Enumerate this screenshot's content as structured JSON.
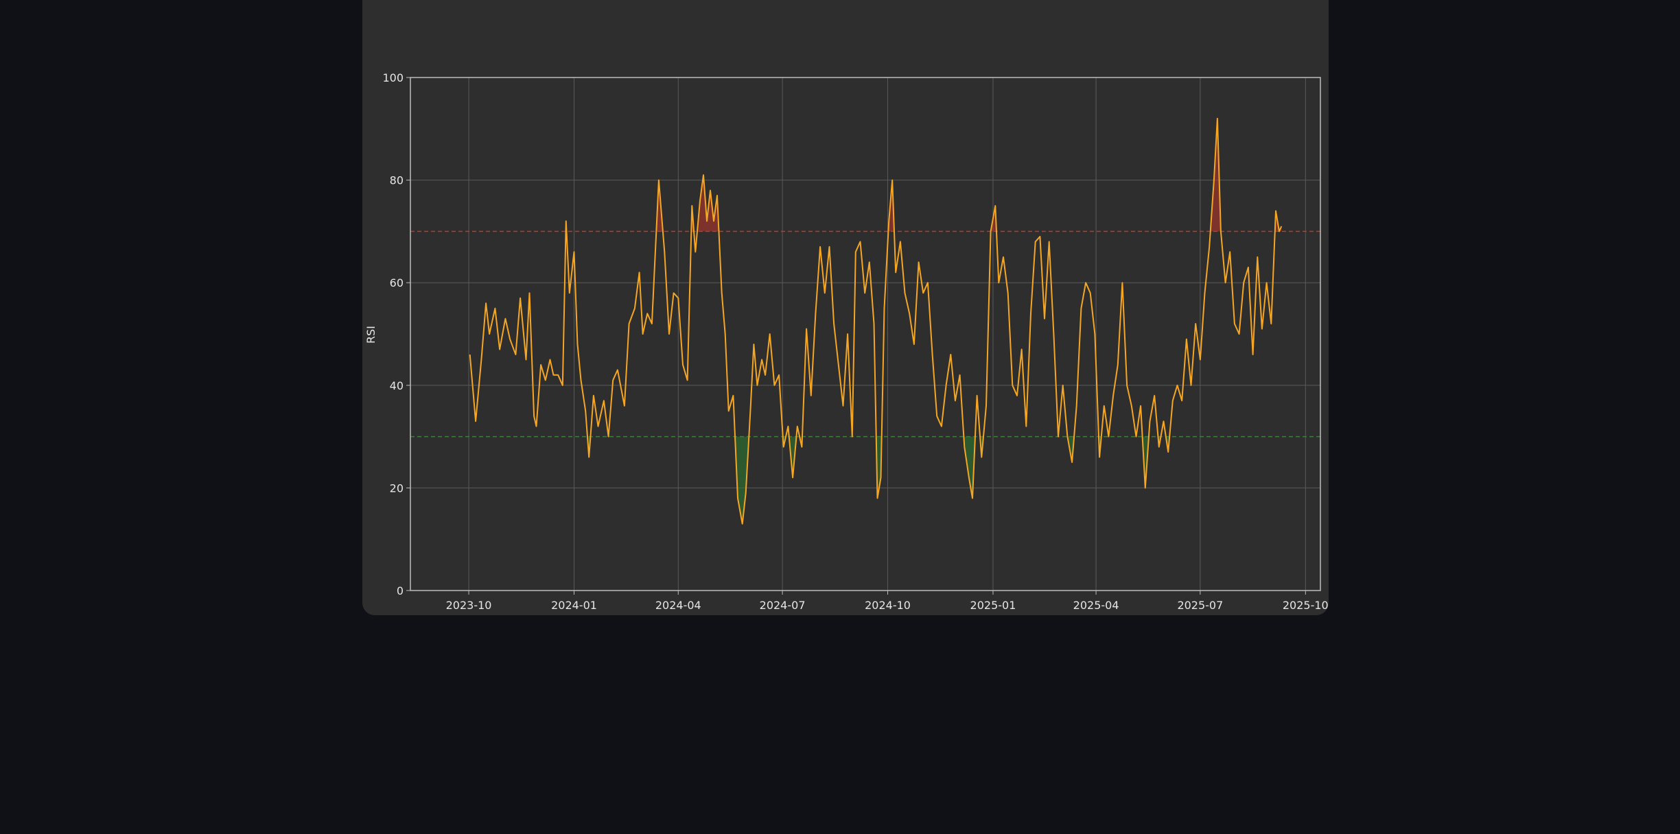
{
  "chart_data": {
    "type": "line",
    "title": "",
    "xlabel": "",
    "ylabel": "RSI",
    "ylim": [
      0,
      100
    ],
    "xlim": [
      "2023-08-11",
      "2025-10-14"
    ],
    "grid": true,
    "legend": "none",
    "y_ticks": [
      0,
      20,
      40,
      60,
      80,
      100
    ],
    "x_ticks": [
      "2023-10",
      "2024-01",
      "2024-04",
      "2024-07",
      "2024-10",
      "2025-01",
      "2025-04",
      "2025-07",
      "2025-10"
    ],
    "x_tick_dates": [
      "2023-10-01",
      "2024-01-01",
      "2024-04-01",
      "2024-07-01",
      "2024-10-01",
      "2025-01-01",
      "2025-04-01",
      "2025-07-01",
      "2025-10-01"
    ],
    "overbought": 70,
    "oversold": 30,
    "colors": {
      "line": "#f5a623",
      "overbought_line": "#c0392b",
      "oversold_line": "#3f7d3a",
      "overbought_fill": "#c0392b",
      "oversold_fill": "#2e7d32",
      "grid": "#5a5a5a",
      "axes": "#bdbdbd"
    },
    "series": [
      {
        "values": [
          [
            "2023-10-02",
            46
          ],
          [
            "2023-10-07",
            33
          ],
          [
            "2023-10-12",
            45
          ],
          [
            "2023-10-16",
            56
          ],
          [
            "2023-10-19",
            50
          ],
          [
            "2023-10-24",
            55
          ],
          [
            "2023-10-28",
            47
          ],
          [
            "2023-11-02",
            53
          ],
          [
            "2023-11-06",
            49
          ],
          [
            "2023-11-11",
            46
          ],
          [
            "2023-11-15",
            57
          ],
          [
            "2023-11-20",
            45
          ],
          [
            "2023-11-23",
            58
          ],
          [
            "2023-11-27",
            34
          ],
          [
            "2023-11-29",
            32
          ],
          [
            "2023-12-03",
            44
          ],
          [
            "2023-12-07",
            41
          ],
          [
            "2023-12-11",
            45
          ],
          [
            "2023-12-14",
            42
          ],
          [
            "2023-12-18",
            42
          ],
          [
            "2023-12-22",
            40
          ],
          [
            "2023-12-25",
            72
          ],
          [
            "2023-12-28",
            58
          ],
          [
            "2024-01-01",
            66
          ],
          [
            "2024-01-04",
            48
          ],
          [
            "2024-01-07",
            41
          ],
          [
            "2024-01-11",
            35
          ],
          [
            "2024-01-14",
            26
          ],
          [
            "2024-01-18",
            38
          ],
          [
            "2024-01-22",
            32
          ],
          [
            "2024-01-27",
            37
          ],
          [
            "2024-01-31",
            30
          ],
          [
            "2024-02-04",
            41
          ],
          [
            "2024-02-08",
            43
          ],
          [
            "2024-02-14",
            36
          ],
          [
            "2024-02-18",
            52
          ],
          [
            "2024-02-23",
            55
          ],
          [
            "2024-02-27",
            62
          ],
          [
            "2024-03-01",
            50
          ],
          [
            "2024-03-05",
            54
          ],
          [
            "2024-03-09",
            52
          ],
          [
            "2024-03-15",
            80
          ],
          [
            "2024-03-20",
            66
          ],
          [
            "2024-03-24",
            50
          ],
          [
            "2024-03-28",
            58
          ],
          [
            "2024-04-01",
            57
          ],
          [
            "2024-04-05",
            44
          ],
          [
            "2024-04-09",
            41
          ],
          [
            "2024-04-13",
            75
          ],
          [
            "2024-04-16",
            66
          ],
          [
            "2024-04-20",
            76
          ],
          [
            "2024-04-23",
            81
          ],
          [
            "2024-04-26",
            72
          ],
          [
            "2024-04-29",
            78
          ],
          [
            "2024-05-02",
            72
          ],
          [
            "2024-05-05",
            77
          ],
          [
            "2024-05-09",
            58
          ],
          [
            "2024-05-12",
            50
          ],
          [
            "2024-05-15",
            35
          ],
          [
            "2024-05-19",
            38
          ],
          [
            "2024-05-23",
            18
          ],
          [
            "2024-05-27",
            13
          ],
          [
            "2024-05-30",
            19
          ],
          [
            "2024-06-03",
            35
          ],
          [
            "2024-06-06",
            48
          ],
          [
            "2024-06-09",
            40
          ],
          [
            "2024-06-13",
            45
          ],
          [
            "2024-06-16",
            42
          ],
          [
            "2024-06-20",
            50
          ],
          [
            "2024-06-24",
            40
          ],
          [
            "2024-06-28",
            42
          ],
          [
            "2024-07-02",
            28
          ],
          [
            "2024-07-06",
            32
          ],
          [
            "2024-07-10",
            22
          ],
          [
            "2024-07-14",
            32
          ],
          [
            "2024-07-18",
            28
          ],
          [
            "2024-07-22",
            51
          ],
          [
            "2024-07-26",
            38
          ],
          [
            "2024-07-30",
            54
          ],
          [
            "2024-08-03",
            67
          ],
          [
            "2024-08-07",
            58
          ],
          [
            "2024-08-11",
            67
          ],
          [
            "2024-08-15",
            52
          ],
          [
            "2024-08-19",
            44
          ],
          [
            "2024-08-23",
            36
          ],
          [
            "2024-08-27",
            50
          ],
          [
            "2024-08-31",
            30
          ],
          [
            "2024-09-03",
            66
          ],
          [
            "2024-09-07",
            68
          ],
          [
            "2024-09-11",
            58
          ],
          [
            "2024-09-15",
            64
          ],
          [
            "2024-09-19",
            52
          ],
          [
            "2024-09-22",
            18
          ],
          [
            "2024-09-25",
            22
          ],
          [
            "2024-09-28",
            55
          ],
          [
            "2024-10-02",
            72
          ],
          [
            "2024-10-05",
            80
          ],
          [
            "2024-10-08",
            62
          ],
          [
            "2024-10-12",
            68
          ],
          [
            "2024-10-16",
            58
          ],
          [
            "2024-10-20",
            54
          ],
          [
            "2024-10-24",
            48
          ],
          [
            "2024-10-28",
            64
          ],
          [
            "2024-11-01",
            58
          ],
          [
            "2024-11-05",
            60
          ],
          [
            "2024-11-09",
            46
          ],
          [
            "2024-11-13",
            34
          ],
          [
            "2024-11-17",
            32
          ],
          [
            "2024-11-21",
            40
          ],
          [
            "2024-11-25",
            46
          ],
          [
            "2024-11-29",
            37
          ],
          [
            "2024-12-03",
            42
          ],
          [
            "2024-12-07",
            28
          ],
          [
            "2024-12-11",
            22
          ],
          [
            "2024-12-14",
            18
          ],
          [
            "2024-12-18",
            38
          ],
          [
            "2024-12-22",
            26
          ],
          [
            "2024-12-26",
            36
          ],
          [
            "2024-12-30",
            70
          ],
          [
            "2025-01-03",
            75
          ],
          [
            "2025-01-06",
            60
          ],
          [
            "2025-01-10",
            65
          ],
          [
            "2025-01-14",
            58
          ],
          [
            "2025-01-18",
            40
          ],
          [
            "2025-01-22",
            38
          ],
          [
            "2025-01-26",
            47
          ],
          [
            "2025-01-30",
            32
          ],
          [
            "2025-02-03",
            54
          ],
          [
            "2025-02-07",
            68
          ],
          [
            "2025-02-11",
            69
          ],
          [
            "2025-02-15",
            53
          ],
          [
            "2025-02-19",
            68
          ],
          [
            "2025-02-23",
            50
          ],
          [
            "2025-02-27",
            30
          ],
          [
            "2025-03-03",
            40
          ],
          [
            "2025-03-07",
            30
          ],
          [
            "2025-03-11",
            25
          ],
          [
            "2025-03-15",
            36
          ],
          [
            "2025-03-19",
            55
          ],
          [
            "2025-03-23",
            60
          ],
          [
            "2025-03-27",
            58
          ],
          [
            "2025-03-31",
            50
          ],
          [
            "2025-04-04",
            26
          ],
          [
            "2025-04-08",
            36
          ],
          [
            "2025-04-12",
            30
          ],
          [
            "2025-04-16",
            38
          ],
          [
            "2025-04-20",
            44
          ],
          [
            "2025-04-24",
            60
          ],
          [
            "2025-04-28",
            40
          ],
          [
            "2025-05-02",
            36
          ],
          [
            "2025-05-06",
            30
          ],
          [
            "2025-05-10",
            36
          ],
          [
            "2025-05-14",
            20
          ],
          [
            "2025-05-18",
            33
          ],
          [
            "2025-05-22",
            38
          ],
          [
            "2025-05-26",
            28
          ],
          [
            "2025-05-30",
            33
          ],
          [
            "2025-06-03",
            27
          ],
          [
            "2025-06-07",
            37
          ],
          [
            "2025-06-11",
            40
          ],
          [
            "2025-06-15",
            37
          ],
          [
            "2025-06-19",
            49
          ],
          [
            "2025-06-23",
            40
          ],
          [
            "2025-06-27",
            52
          ],
          [
            "2025-07-01",
            45
          ],
          [
            "2025-07-05",
            58
          ],
          [
            "2025-07-09",
            67
          ],
          [
            "2025-07-13",
            80
          ],
          [
            "2025-07-16",
            92
          ],
          [
            "2025-07-19",
            70
          ],
          [
            "2025-07-23",
            60
          ],
          [
            "2025-07-27",
            66
          ],
          [
            "2025-07-31",
            52
          ],
          [
            "2025-08-04",
            50
          ],
          [
            "2025-08-08",
            60
          ],
          [
            "2025-08-12",
            63
          ],
          [
            "2025-08-16",
            46
          ],
          [
            "2025-08-20",
            65
          ],
          [
            "2025-08-24",
            51
          ],
          [
            "2025-08-28",
            60
          ],
          [
            "2025-09-01",
            52
          ],
          [
            "2025-09-05",
            74
          ],
          [
            "2025-09-08",
            70
          ],
          [
            "2025-09-10",
            71
          ]
        ]
      }
    ]
  }
}
